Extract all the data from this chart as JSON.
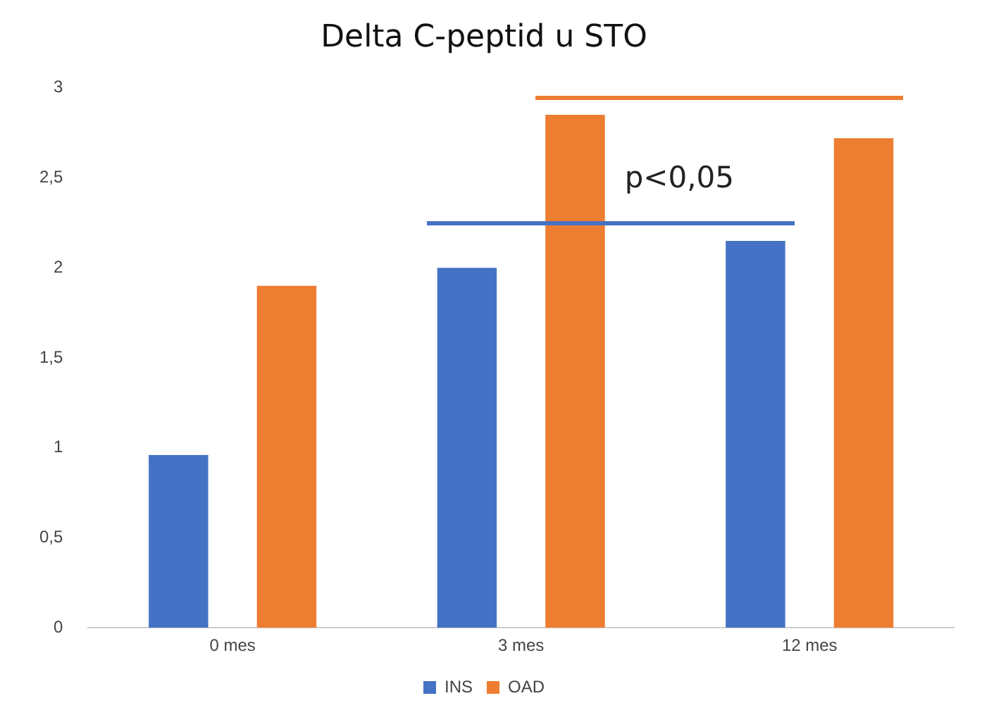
{
  "chart_data": {
    "type": "bar",
    "title": "Delta C-peptid u STO",
    "categories": [
      "0 mes",
      "3 mes",
      "12 mes"
    ],
    "series": [
      {
        "name": "INS",
        "color": "#4472c4",
        "values": [
          0.96,
          2.0,
          2.15
        ]
      },
      {
        "name": "OAD",
        "color": "#ed7d31",
        "values": [
          1.9,
          2.85,
          2.72
        ]
      }
    ],
    "ylim": [
      0,
      3
    ],
    "yticks": [
      0,
      {
        "value": 0.5,
        "label": "0,5"
      },
      1,
      {
        "value": 1.5,
        "label": "1,5"
      },
      2,
      {
        "value": 2.5,
        "label": "2,5"
      },
      3
    ],
    "grid": false,
    "legend": "bottom",
    "annotations": [
      "p<0,05"
    ]
  }
}
